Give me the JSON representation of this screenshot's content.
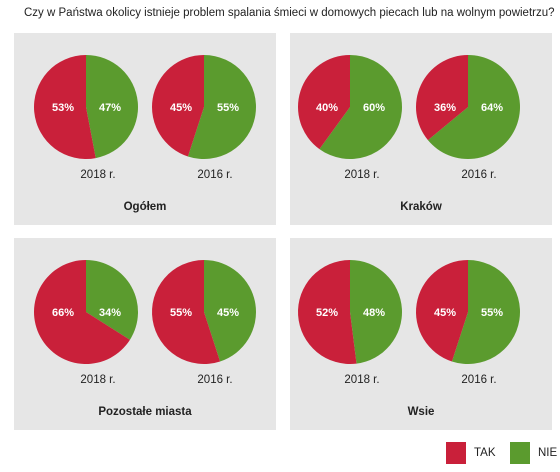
{
  "colors": {
    "tak": "#c9203a",
    "nie": "#5b9b2e",
    "panel_bg": "#e6e6e6"
  },
  "legend": {
    "tak": "TAK",
    "nie": "NIE"
  },
  "chart_data": {
    "type": "pie",
    "title": "Czy w Państwa okolicy istnieje problem spalania śmieci w domowych piecach lub na wolnym powietrzu?",
    "series_names": [
      "TAK",
      "NIE"
    ],
    "panels": [
      {
        "name": "Ogółem",
        "pies": [
          {
            "label": "2018 r.",
            "tak": 53,
            "nie": 47,
            "tak_label": "53%",
            "nie_label": "47%"
          },
          {
            "label": "2016 r.",
            "tak": 45,
            "nie": 55,
            "tak_label": "45%",
            "nie_label": "55%"
          }
        ]
      },
      {
        "name": "Kraków",
        "pies": [
          {
            "label": "2018 r.",
            "tak": 40,
            "nie": 60,
            "tak_label": "40%",
            "nie_label": "60%"
          },
          {
            "label": "2016 r.",
            "tak": 36,
            "nie": 64,
            "tak_label": "36%",
            "nie_label": "64%"
          }
        ]
      },
      {
        "name": "Pozostałe miasta",
        "pies": [
          {
            "label": "2018 r.",
            "tak": 66,
            "nie": 34,
            "tak_label": "66%",
            "nie_label": "34%"
          },
          {
            "label": "2016 r.",
            "tak": 55,
            "nie": 45,
            "tak_label": "55%",
            "nie_label": "45%"
          }
        ]
      },
      {
        "name": "Wsie",
        "pies": [
          {
            "label": "2018 r.",
            "tak": 52,
            "nie": 48,
            "tak_label": "52%",
            "nie_label": "48%"
          },
          {
            "label": "2016 r.",
            "tak": 45,
            "nie": 55,
            "tak_label": "45%",
            "nie_label": "55%"
          }
        ]
      }
    ]
  }
}
